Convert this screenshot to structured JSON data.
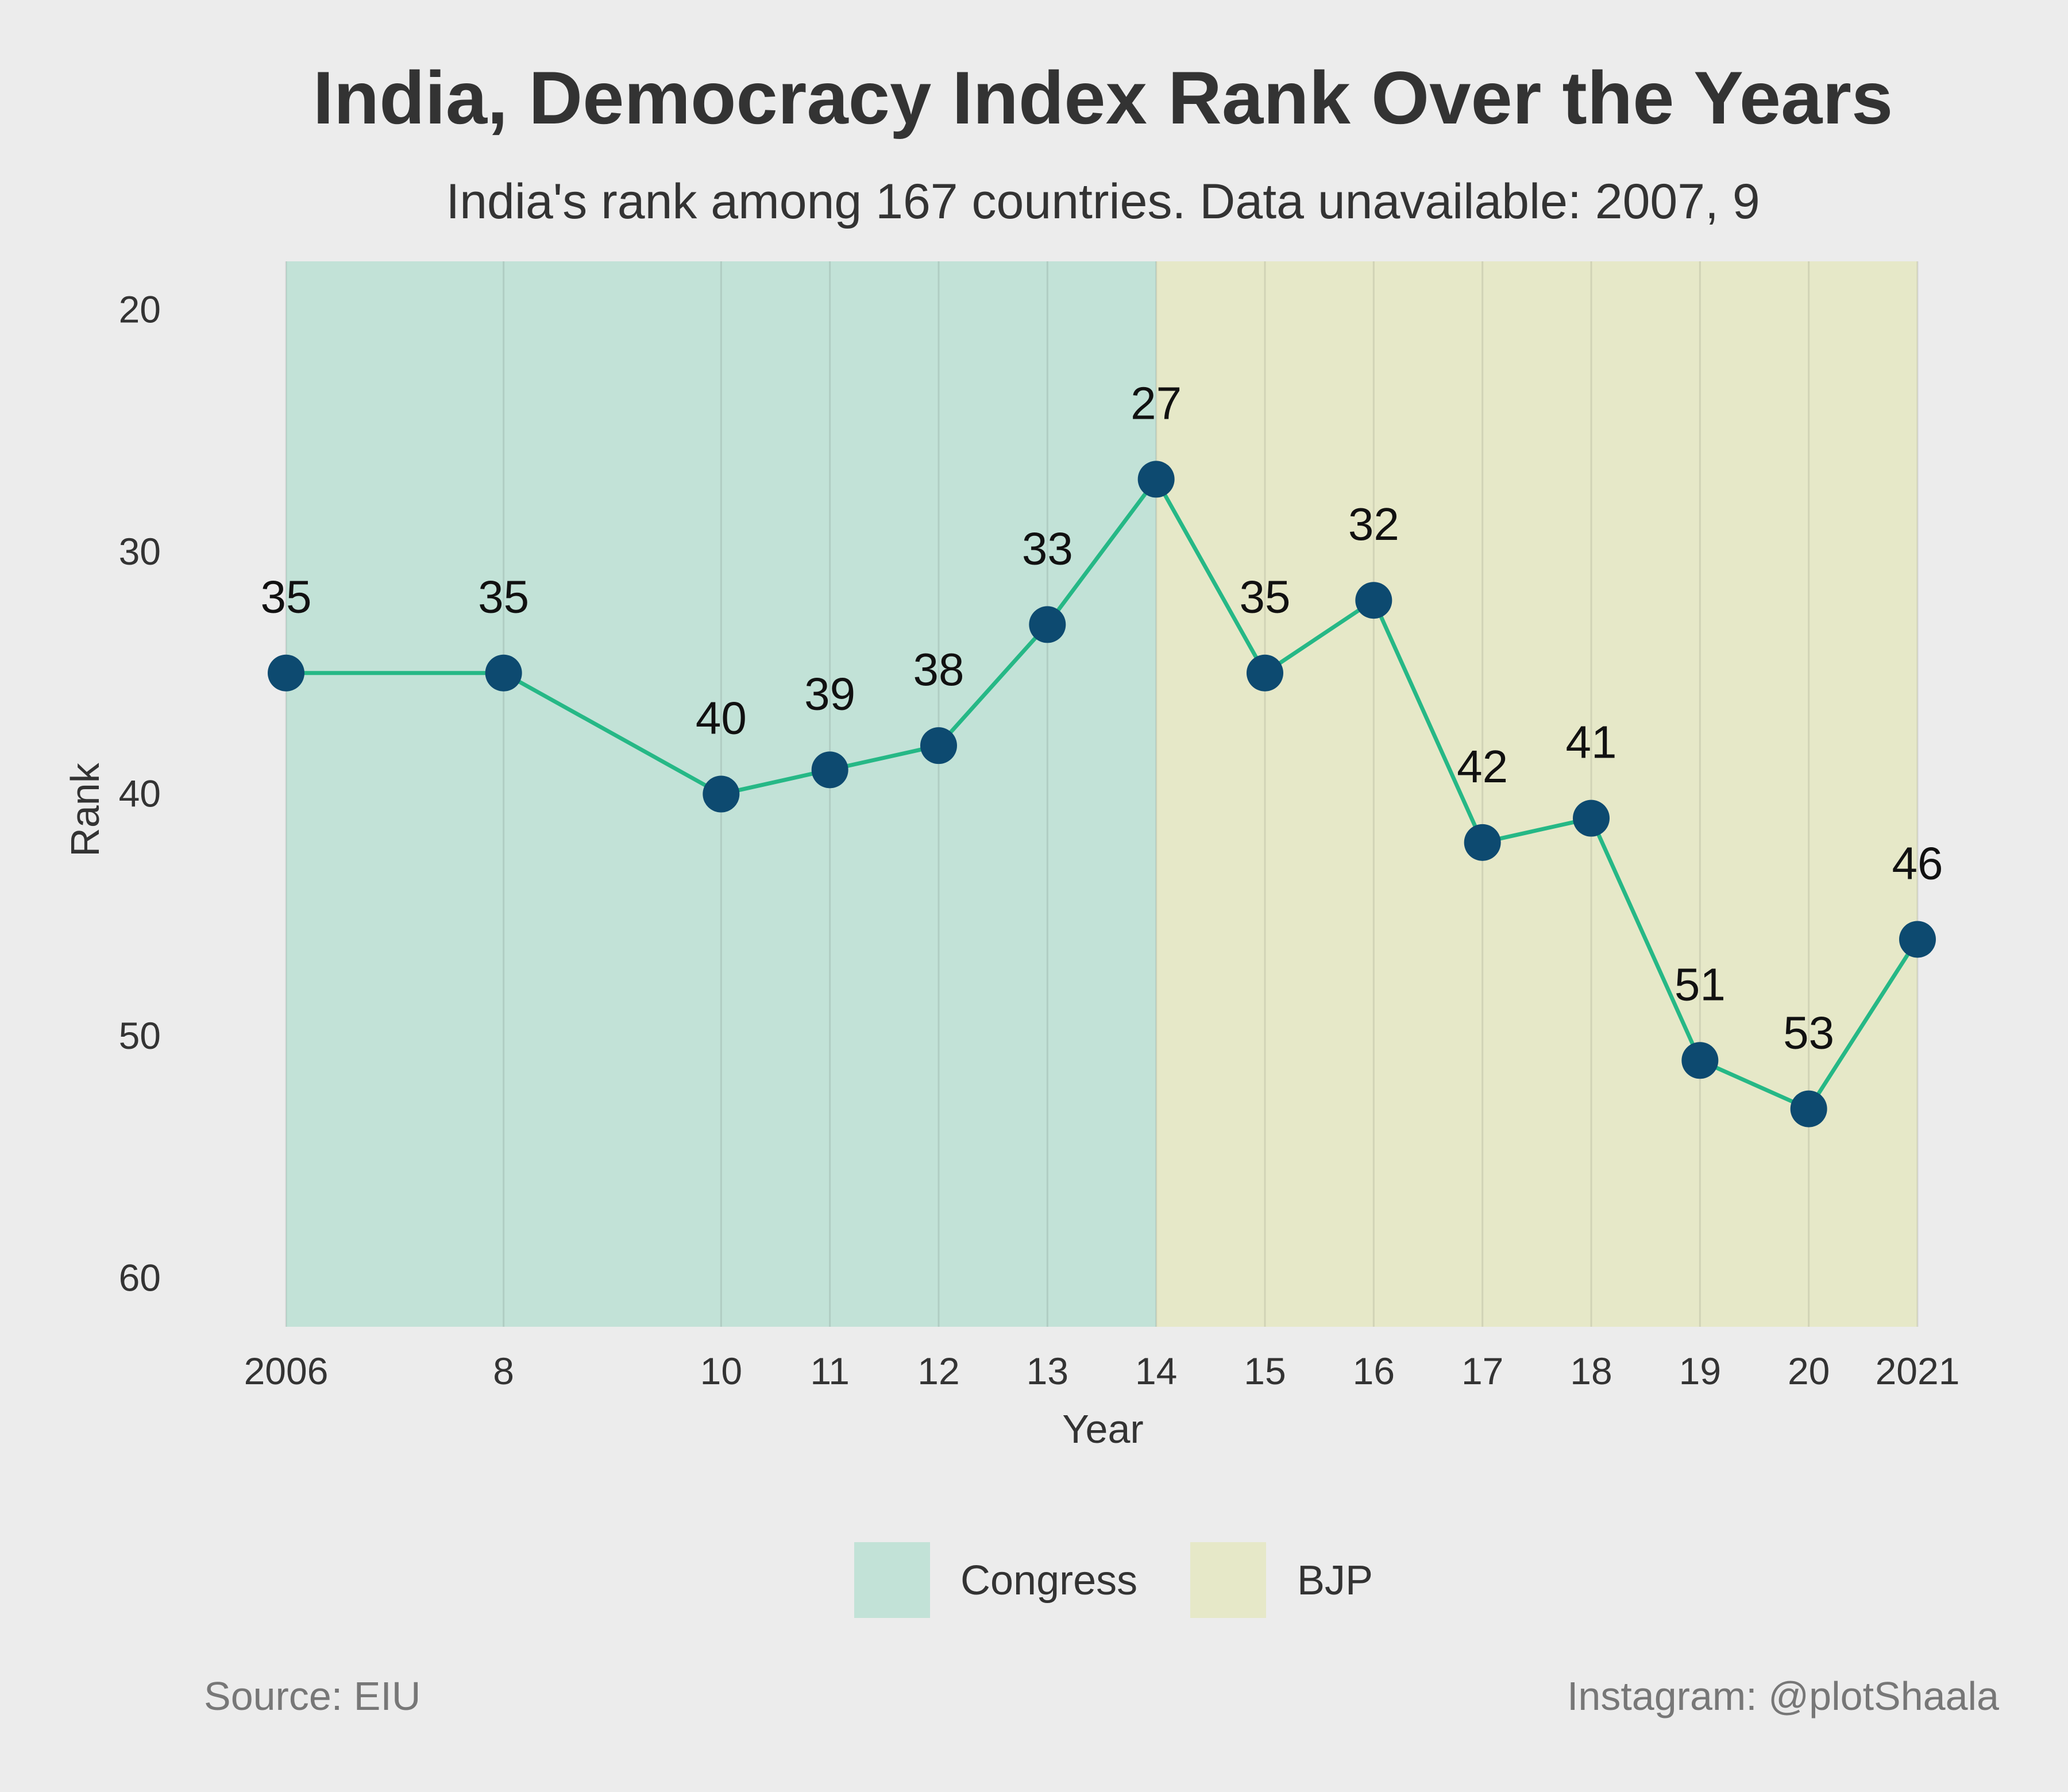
{
  "chart_data": {
    "type": "line",
    "title": "India, Democracy Index Rank Over the Years",
    "subtitle": "India's rank among 167 countries. Data unavailable: 2007, 9",
    "xlabel": "Year",
    "ylabel": "Rank",
    "x": [
      2006,
      2008,
      2010,
      2011,
      2012,
      2013,
      2014,
      2015,
      2016,
      2017,
      2018,
      2019,
      2020,
      2021
    ],
    "x_tick_labels": [
      "2006",
      "8",
      "10",
      "11",
      "12",
      "13",
      "14",
      "15",
      "16",
      "17",
      "18",
      "19",
      "20",
      "2021"
    ],
    "y": [
      35,
      35,
      40,
      39,
      38,
      33,
      27,
      35,
      32,
      42,
      41,
      51,
      53,
      46
    ],
    "data_labels": [
      "35",
      "35",
      "40",
      "39",
      "38",
      "33",
      "27",
      "35",
      "32",
      "42",
      "41",
      "51",
      "53",
      "46"
    ],
    "y_ticks": [
      20,
      30,
      40,
      50,
      60
    ],
    "y_tick_labels": [
      "20",
      "30",
      "40",
      "50",
      "60"
    ],
    "ylim": [
      18,
      62
    ],
    "y_inverted": true,
    "xlim": [
      2006,
      2021
    ],
    "grid": "vertical",
    "regions": [
      {
        "name": "Congress",
        "x_start": 2006,
        "x_end": 2014,
        "color": "#c2e2d7"
      },
      {
        "name": "BJP",
        "x_start": 2014,
        "x_end": 2021,
        "color": "#e6e8c8"
      }
    ],
    "legend": {
      "placement": "bottom-center",
      "entries": [
        "Congress",
        "BJP"
      ]
    },
    "colors": {
      "line": "#26b886",
      "marker": "#0d4a70",
      "background": "#ececec"
    }
  },
  "footer": {
    "source": "Source: EIU",
    "credit": "Instagram: @plotShaala"
  }
}
